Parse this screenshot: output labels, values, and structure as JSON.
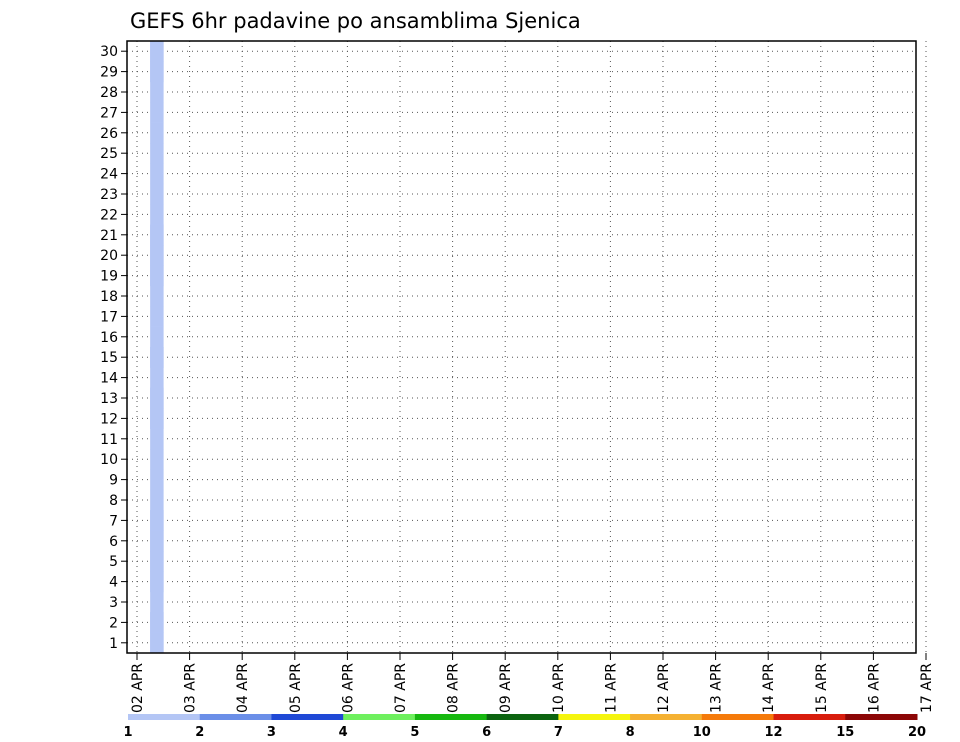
{
  "chart_data": {
    "type": "heatmap",
    "title": "GEFS 6hr padavine po ansamblima Sjenica",
    "x_tick_labels": [
      "02 APR",
      "03 APR",
      "04 APR",
      "05 APR",
      "06 APR",
      "07 APR",
      "08 APR",
      "09 APR",
      "10 APR",
      "11 APR",
      "12 APR",
      "13 APR",
      "14 APR",
      "15 APR",
      "16 APR",
      "17 APR"
    ],
    "y_tick_labels": [
      "1",
      "2",
      "3",
      "4",
      "5",
      "6",
      "7",
      "8",
      "9",
      "10",
      "11",
      "12",
      "13",
      "14",
      "15",
      "16",
      "17",
      "18",
      "19",
      "20",
      "21",
      "22",
      "23",
      "24",
      "25",
      "26",
      "27",
      "28",
      "29",
      "30"
    ],
    "legend_labels": [
      "1",
      "2",
      "3",
      "4",
      "5",
      "6",
      "7",
      "8",
      "10",
      "12",
      "15",
      "20"
    ],
    "legend_colors": [
      "#b4c6f5",
      "#6b8fe8",
      "#1f49d6",
      "#6ef05e",
      "#16b80f",
      "#0c6410",
      "#f5f50e",
      "#f5b132",
      "#f57a0a",
      "#d81d0d",
      "#8c0606"
    ],
    "units_note": "",
    "grid": true,
    "cells": [
      [
        1,
        1,
        1
      ],
      [
        1,
        1,
        2
      ],
      [
        1,
        1,
        4
      ],
      [
        1,
        1,
        5
      ],
      [
        1,
        1,
        6
      ],
      [
        1,
        1,
        7
      ],
      [
        1,
        1,
        12
      ],
      [
        1,
        1,
        13
      ],
      [
        1,
        1,
        15
      ],
      [
        1,
        1,
        19
      ],
      [
        1,
        1,
        20
      ],
      [
        1,
        1,
        21
      ],
      [
        1,
        1,
        29
      ],
      [
        1,
        1,
        30
      ],
      [
        1,
        1,
        1
      ],
      [
        1,
        1,
        2
      ],
      [
        1,
        1,
        3
      ],
      [
        1,
        1,
        4
      ],
      [
        1,
        1,
        5
      ],
      [
        1,
        1,
        6
      ],
      [
        1,
        1,
        7
      ],
      [
        1,
        1,
        8
      ],
      [
        1,
        1,
        9
      ],
      [
        1,
        1,
        10
      ],
      [
        1,
        1,
        11
      ],
      [
        1,
        1,
        12
      ],
      [
        1,
        1,
        13
      ],
      [
        1,
        1,
        14
      ],
      [
        1,
        1,
        15
      ],
      [
        1,
        1,
        16
      ],
      [
        1,
        1,
        17
      ],
      [
        1,
        1,
        18
      ],
      [
        1,
        1,
        19
      ],
      [
        1,
        1,
        20
      ],
      [
        1,
        1,
        21
      ],
      [
        1,
        1,
        22
      ],
      [
        1,
        1,
        23
      ],
      [
        1,
        1,
        24
      ],
      [
        1,
        1,
        25
      ],
      [
        1,
        1,
        26
      ],
      [
        1,
        1,
        27
      ],
      [
        1,
        1,
        28
      ],
      [
        1,
        1,
        29
      ],
      [
        1,
        1,
        30
      ]
    ]
  }
}
